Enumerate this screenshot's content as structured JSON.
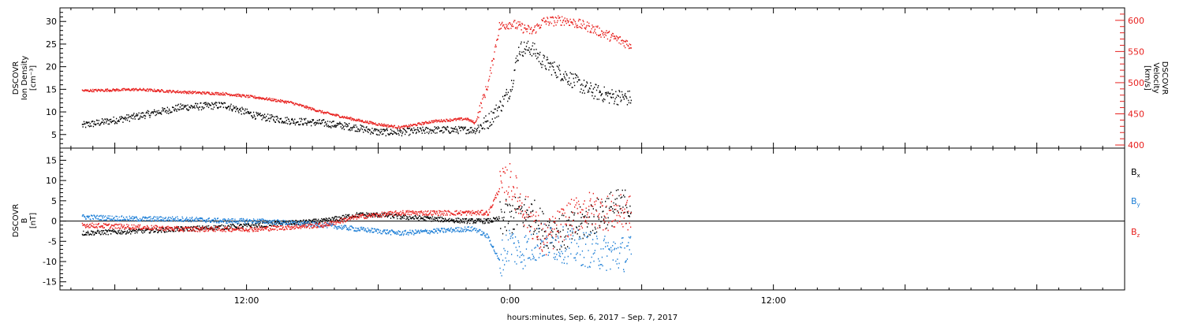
{
  "chart_data": [
    {
      "type": "line",
      "title": "",
      "xlabel": "",
      "x_tick_labels": [
        "12:00",
        "0:00",
        "12:00"
      ],
      "ylabel_left": [
        "DSCOVR",
        "Ion Density",
        "[cm⁻³]"
      ],
      "ylabel_right": [
        "DSCOVR",
        "Velocity",
        "[km/s]"
      ],
      "ylim_left": [
        2,
        33
      ],
      "ylim_right": [
        395,
        620
      ],
      "yticks_left": [
        5,
        10,
        15,
        20,
        25,
        30
      ],
      "yticks_right": [
        400,
        450,
        500,
        550,
        600
      ],
      "x_hours": [
        -19.5,
        -17,
        -15,
        -13,
        -11.5,
        -10,
        -8.5,
        -7,
        -6,
        -5,
        -3.5,
        -2,
        -1.6,
        -1,
        -0.5,
        0,
        0.4,
        1,
        1.5,
        2.5,
        3.5,
        4.5,
        5.5
      ],
      "series": [
        {
          "name": "Ion Density",
          "axis": "left",
          "color": "#000000",
          "values": [
            7,
            9,
            11,
            11.5,
            9,
            8,
            7.5,
            6.5,
            5.5,
            5.5,
            6,
            6,
            6,
            8,
            11,
            15,
            24,
            24,
            21,
            18,
            15,
            13.5,
            13
          ]
        },
        {
          "name": "Velocity",
          "axis": "right",
          "color": "#e8201e",
          "values": [
            487,
            489,
            485,
            482,
            476,
            468,
            452,
            440,
            433,
            428,
            438,
            442,
            435,
            500,
            590,
            595,
            590,
            582,
            598,
            600,
            590,
            575,
            560
          ]
        }
      ]
    },
    {
      "type": "line",
      "title": "",
      "xlabel": "hours:minutes, Sep.  6, 2017 – Sep.  7, 2017",
      "x_tick_labels": [
        "12:00",
        "0:00",
        "12:00"
      ],
      "ylabel_left": [
        "DSCOVR",
        "B",
        "[nT]"
      ],
      "ylim": [
        -17,
        18
      ],
      "yticks": [
        -15,
        -10,
        -5,
        0,
        5,
        10,
        15
      ],
      "legend": [
        "Bx",
        "By",
        "Bz"
      ],
      "legend_placement": "right",
      "x_hours": [
        -19.5,
        -17,
        -15,
        -13,
        -11.5,
        -10,
        -8.5,
        -7,
        -6,
        -5,
        -3.5,
        -2,
        -1.6,
        -1,
        -0.5,
        0,
        0.4,
        1,
        1.5,
        2.5,
        3.5,
        4.5,
        5.5
      ],
      "series": [
        {
          "name": "Bx",
          "color": "#000000",
          "values": [
            -3,
            -2.5,
            -2,
            -1.5,
            -1,
            -0.5,
            0,
            1.5,
            1.5,
            1,
            0.5,
            0,
            0,
            0,
            0.5,
            1,
            2,
            1.5,
            -2,
            -3,
            0,
            3,
            4
          ]
        },
        {
          "name": "By",
          "color": "#1e7fd6",
          "values": [
            1,
            0.5,
            0.5,
            0,
            0,
            -0.5,
            -1,
            -2,
            -2.5,
            -3,
            -2.5,
            -2,
            -2,
            -4,
            -10,
            -5,
            -8,
            -6,
            -5,
            -6,
            -7,
            -8,
            -8
          ]
        },
        {
          "name": "Bz",
          "color": "#e8201e",
          "values": [
            -1,
            -1.5,
            -2,
            -2,
            -2,
            -1.5,
            -1,
            1,
            1.5,
            2,
            2,
            2,
            2,
            2,
            8,
            10,
            5,
            0,
            -5,
            0,
            3,
            2,
            2
          ]
        }
      ]
    }
  ],
  "ui": {
    "x_axis_caption": "hours:minutes, Sep.  6, 2017 – Sep.  7, 2017",
    "density_label": [
      "DSCOVR",
      "Ion Density",
      "[cm⁻³]"
    ],
    "velocity_label": [
      "DSCOVR",
      "Velocity",
      "[km/s]"
    ],
    "b_label": [
      "DSCOVR",
      "B",
      "[nT]"
    ],
    "legend": [
      {
        "name": "Bx",
        "base": "B",
        "sub": "x",
        "color": "#000000"
      },
      {
        "name": "By",
        "base": "B",
        "sub": "y",
        "color": "#1e7fd6"
      },
      {
        "name": "Bz",
        "base": "B",
        "sub": "z",
        "color": "#e8201e"
      }
    ]
  }
}
